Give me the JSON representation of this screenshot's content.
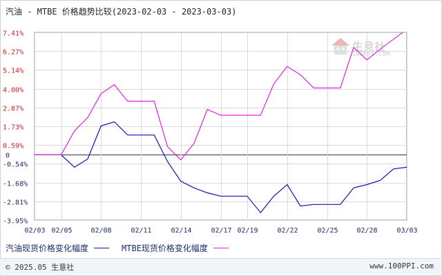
{
  "chart_data": {
    "type": "line",
    "title": "汽油 - MTBE 价格趋势比较(2023-02-03 - 2023-03-03)",
    "x": [
      "02/03",
      "02/04",
      "02/05",
      "02/06",
      "02/07",
      "02/08",
      "02/09",
      "02/10",
      "02/11",
      "02/12",
      "02/13",
      "02/14",
      "02/15",
      "02/16",
      "02/17",
      "02/18",
      "02/19",
      "02/20",
      "02/21",
      "02/22",
      "02/23",
      "02/24",
      "02/25",
      "02/26",
      "02/27",
      "02/28",
      "03/01",
      "03/02",
      "03/03"
    ],
    "xticks": [
      "02/03",
      "02/05",
      "02/08",
      "02/11",
      "02/14",
      "02/17",
      "02/19",
      "02/22",
      "02/25",
      "02/28",
      "03/03"
    ],
    "yticks": [
      "7.41%",
      "6.27%",
      "5.14%",
      "4.00%",
      "2.87%",
      "1.73%",
      "0.59%",
      "0",
      "-0.54%",
      "-1.68%",
      "-2.81%",
      "-3.95%"
    ],
    "ylim": [
      -3.95,
      7.41
    ],
    "grid": true,
    "series": [
      {
        "name": "汽油现货价格变化幅度",
        "color": "#1010b0",
        "values": [
          0,
          0,
          0,
          -0.75,
          -0.25,
          1.75,
          2.0,
          1.2,
          1.2,
          1.2,
          -0.4,
          -1.6,
          -2.0,
          -2.3,
          -2.5,
          -2.5,
          -2.5,
          -3.5,
          -2.5,
          -1.8,
          -3.1,
          -3.0,
          -3.0,
          -3.0,
          -2.0,
          -1.8,
          -1.55,
          -0.85,
          -0.75
        ]
      },
      {
        "name": "MTBE现货价格变化幅度",
        "color": "#e020e0",
        "values": [
          0,
          0,
          0,
          1.45,
          2.25,
          3.7,
          4.25,
          3.25,
          3.25,
          3.25,
          0.5,
          -0.3,
          0.7,
          2.75,
          2.4,
          2.4,
          2.4,
          2.4,
          4.3,
          5.35,
          4.85,
          4.05,
          4.05,
          4.05,
          6.5,
          5.75,
          6.4,
          7.0,
          7.6
        ]
      }
    ]
  },
  "legend": [
    {
      "label": "汽油现货价格变化幅度",
      "color": "#1010b0"
    },
    {
      "label": "MTBE现货价格变化幅度",
      "color": "#e020e0"
    }
  ],
  "footer": {
    "copyright": "© 2025.05 生意社",
    "site": "www.100PPI.com"
  },
  "watermark": {
    "name": "生意社",
    "url": "100PPI.COM"
  },
  "colors": {
    "positive_tick": "#d02020",
    "negative_tick": "#1a2b6b",
    "zero_line": "#333333",
    "grid": "#dadada",
    "axis": "#7a8aa0"
  }
}
